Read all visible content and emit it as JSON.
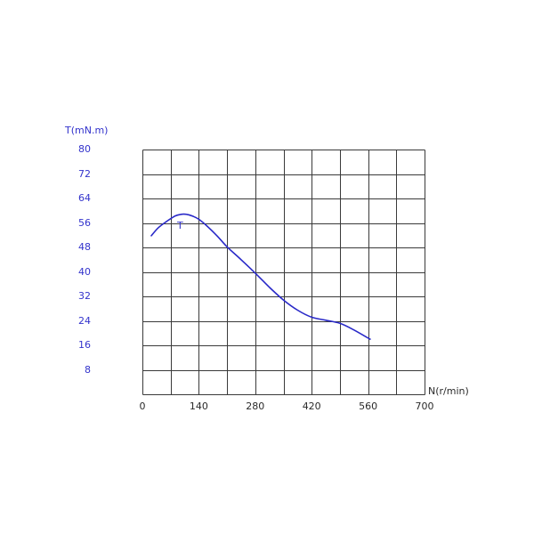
{
  "page": {
    "background": "#ffffff"
  },
  "chart": {
    "y_axis_title": "T(mN.m)",
    "x_axis_title": "N(r/min)",
    "colors": {
      "axis_label_blue": "#3333cc",
      "curve_blue": "#2929c8",
      "grid_line": "#3a3a3a",
      "x_tick_text": "#2a2a2a"
    }
  },
  "chart_data": {
    "type": "line",
    "title": "",
    "xlabel": "N(r/min)",
    "ylabel": "T(mN.m)",
    "xlim": [
      0,
      700
    ],
    "ylim": [
      0,
      80
    ],
    "grid": true,
    "grid_step_x": 70,
    "grid_step_y": 8,
    "legend": "none",
    "x_tick_values": [
      0,
      140,
      280,
      420,
      560,
      700
    ],
    "x_tick_labels": [
      "0",
      "140",
      "280",
      "420",
      "560",
      "700"
    ],
    "y_tick_values": [
      80,
      72,
      64,
      56,
      48,
      40,
      32,
      24,
      16,
      8
    ],
    "y_tick_labels": [
      "80",
      "72",
      "64",
      "56",
      "48",
      "40",
      "32",
      "24",
      "16",
      "8"
    ],
    "series": [
      {
        "name": "T",
        "x": [
          22,
          40,
          60,
          80,
          95,
          110,
          125,
          140,
          160,
          185,
          210,
          245,
          280,
          315,
          350,
          385,
          420,
          455,
          490,
          525,
          565
        ],
        "y": [
          51.8,
          54.5,
          56.5,
          58.2,
          58.8,
          58.8,
          58.2,
          57.2,
          55.0,
          51.8,
          48.2,
          44.0,
          39.6,
          35.0,
          30.8,
          27.5,
          25.2,
          24.2,
          23.2,
          21.0,
          18.0
        ]
      }
    ]
  }
}
